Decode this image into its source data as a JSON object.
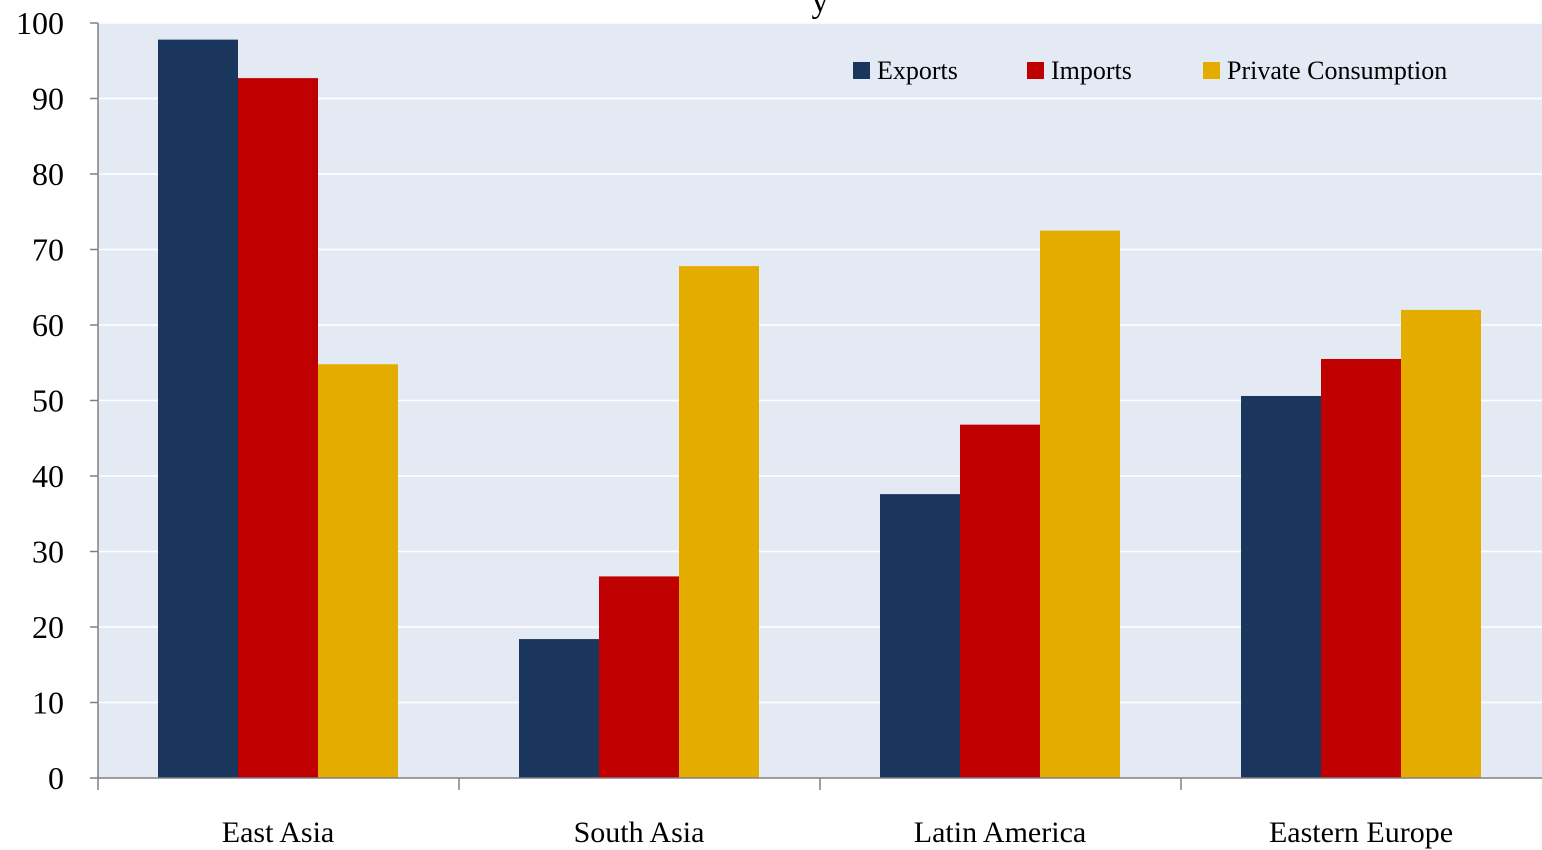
{
  "chart_data": {
    "type": "bar",
    "title_fragment": "y",
    "categories": [
      "East Asia",
      "South Asia",
      "Latin America",
      "Eastern Europe"
    ],
    "series": [
      {
        "name": "Exports",
        "color": "#1a365d",
        "values": [
          97.8,
          18.4,
          37.6,
          50.6
        ]
      },
      {
        "name": "Imports",
        "color": "#c00000",
        "values": [
          92.7,
          26.7,
          46.8,
          55.5
        ]
      },
      {
        "name": "Private Consumption",
        "color": "#e5ac00",
        "values": [
          54.8,
          67.8,
          72.5,
          62.0
        ]
      }
    ],
    "ylim": [
      0,
      100
    ],
    "yticks": [
      0,
      10,
      20,
      30,
      40,
      50,
      60,
      70,
      80,
      90,
      100
    ],
    "grid": true,
    "legend_position": "top-right",
    "plot_background": "#e4eaf4",
    "grid_color": "#ffffff"
  }
}
